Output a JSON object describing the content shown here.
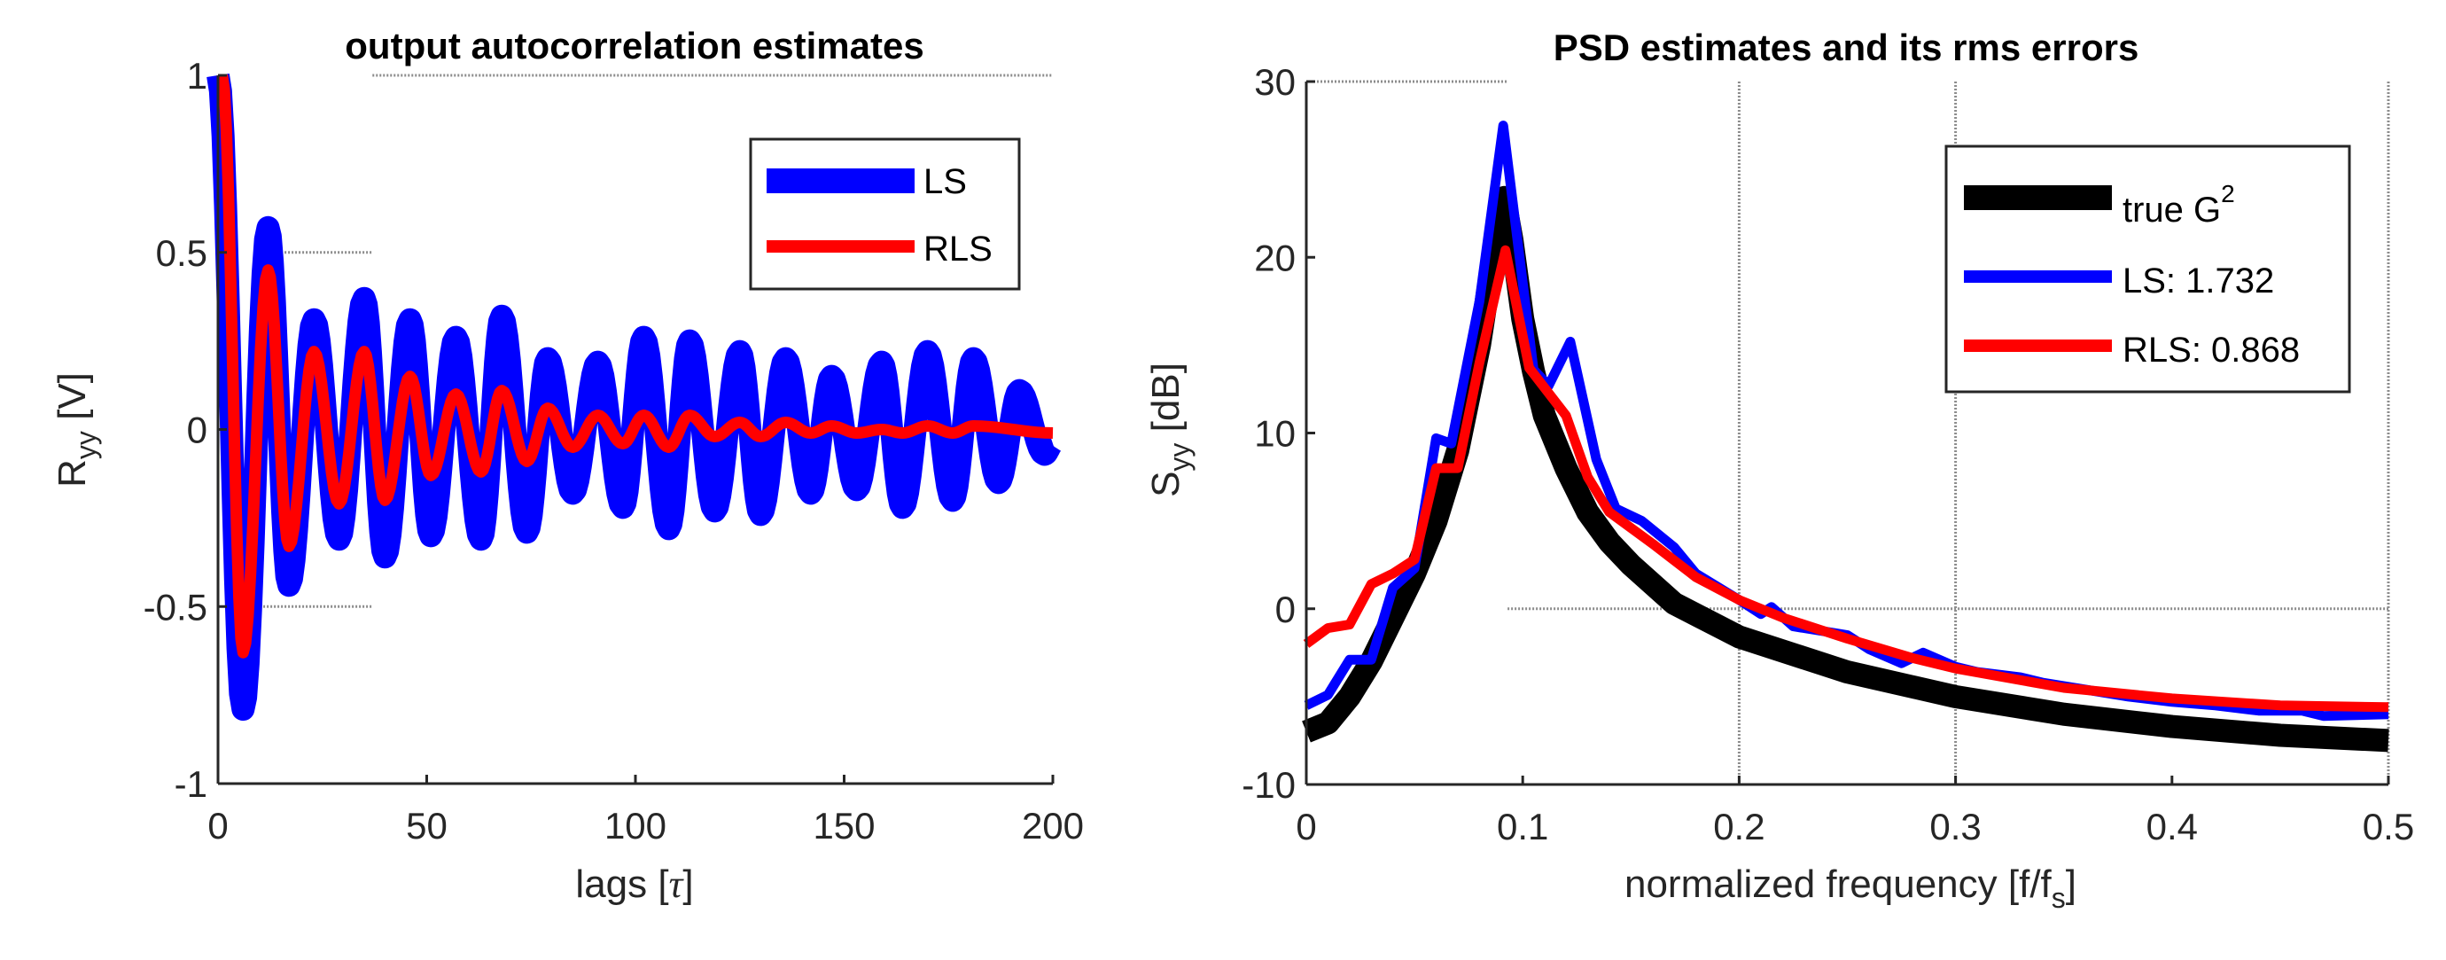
{
  "chart_data": [
    {
      "type": "line",
      "title": "output autocorrelation estimates",
      "xlabel_main": "lags [",
      "xlabel_sym": "τ",
      "xlabel_end": "]",
      "ylabel_main": "R",
      "ylabel_sub": "yy",
      "ylabel_end": " [V]",
      "xlim": [
        0,
        200
      ],
      "ylim": [
        -1,
        1
      ],
      "xticks": [
        0,
        50,
        100,
        150,
        200
      ],
      "yticks": [
        -1,
        -0.5,
        0,
        0.5,
        1
      ],
      "xtick_labels": [
        "0",
        "50",
        "100",
        "150",
        "200"
      ],
      "ytick_labels": [
        "-1",
        "-0.5",
        "0",
        "0.5",
        "1"
      ],
      "legend_position": "top-right",
      "series": [
        {
          "name": "LS",
          "color": "#0000ff",
          "note": "extrema points, cosine-interpolated",
          "x": [
            0,
            6,
            12,
            17,
            23,
            29,
            35,
            40,
            46,
            51,
            57,
            63,
            68,
            74,
            79,
            85,
            91,
            97,
            102,
            108,
            113,
            119,
            125,
            130,
            136,
            142,
            147,
            153,
            159,
            164,
            170,
            176,
            181,
            187,
            192,
            198,
            200
          ],
          "y": [
            1,
            -0.79,
            0.57,
            -0.44,
            0.31,
            -0.31,
            0.37,
            -0.36,
            0.31,
            -0.3,
            0.26,
            -0.31,
            0.32,
            -0.29,
            0.2,
            -0.18,
            0.19,
            -0.22,
            0.26,
            -0.28,
            0.25,
            -0.23,
            0.22,
            -0.24,
            0.2,
            -0.18,
            0.15,
            -0.17,
            0.19,
            -0.22,
            0.22,
            -0.2,
            0.2,
            -0.15,
            0.11,
            -0.07,
            -0.04
          ]
        },
        {
          "name": "RLS",
          "color": "#ff0000",
          "x": [
            1,
            6,
            12,
            17,
            23,
            29,
            35,
            40,
            46,
            51,
            57,
            63,
            68,
            74,
            79,
            85,
            91,
            97,
            102,
            108,
            113,
            119,
            125,
            130,
            136,
            142,
            147,
            153,
            159,
            164,
            170,
            176,
            181,
            200
          ],
          "y": [
            1,
            -0.63,
            0.45,
            -0.33,
            0.22,
            -0.21,
            0.22,
            -0.2,
            0.15,
            -0.13,
            0.1,
            -0.12,
            0.11,
            -0.09,
            0.06,
            -0.05,
            0.04,
            -0.04,
            0.04,
            -0.05,
            0.04,
            -0.02,
            0.02,
            -0.02,
            0.02,
            -0.01,
            0.01,
            -0.01,
            0.0,
            -0.01,
            0.01,
            -0.01,
            0.01,
            -0.01
          ]
        }
      ]
    },
    {
      "type": "line",
      "title": "PSD estimates and its rms errors",
      "xlabel_main": "normalized frequency [f/f",
      "xlabel_sub": "s",
      "xlabel_end": "]",
      "ylabel_main": "S",
      "ylabel_sub": "yy",
      "ylabel_end": " [dB]",
      "xlim": [
        0,
        0.5
      ],
      "ylim": [
        -10,
        30
      ],
      "xticks": [
        0,
        0.1,
        0.2,
        0.3,
        0.4,
        0.5
      ],
      "yticks": [
        -10,
        0,
        10,
        20,
        30
      ],
      "xtick_labels": [
        "0",
        "0.1",
        "0.2",
        "0.3",
        "0.4",
        "0.5"
      ],
      "ytick_labels": [
        "-10",
        "0",
        "10",
        "20",
        "30"
      ],
      "legend_position": "top-right",
      "series": [
        {
          "name": "true G",
          "name_sup": "2",
          "color": "#000000",
          "x": [
            0,
            0.01,
            0.02,
            0.03,
            0.04,
            0.05,
            0.06,
            0.07,
            0.08,
            0.085,
            0.0915,
            0.095,
            0.1,
            0.105,
            0.11,
            0.12,
            0.13,
            0.14,
            0.15,
            0.17,
            0.2,
            0.25,
            0.3,
            0.35,
            0.4,
            0.45,
            0.5
          ],
          "y": [
            -7,
            -6.5,
            -5,
            -3,
            -0.5,
            2,
            5,
            9,
            15,
            19,
            23.4,
            21,
            16.5,
            13.5,
            11,
            8,
            5.5,
            3.8,
            2.5,
            0.3,
            -1.6,
            -3.6,
            -5,
            -6,
            -6.7,
            -7.2,
            -7.5
          ]
        },
        {
          "name": "LS: 1.732",
          "color": "#0000ff",
          "x": [
            0,
            0.01,
            0.02,
            0.03,
            0.04,
            0.05,
            0.06,
            0.067,
            0.08,
            0.091,
            0.105,
            0.112,
            0.122,
            0.134,
            0.143,
            0.155,
            0.17,
            0.18,
            0.2,
            0.21,
            0.215,
            0.225,
            0.24,
            0.25,
            0.26,
            0.275,
            0.285,
            0.3,
            0.31,
            0.33,
            0.34,
            0.36,
            0.38,
            0.4,
            0.42,
            0.44,
            0.46,
            0.47,
            0.5
          ],
          "y": [
            -5.5,
            -4.9,
            -2.9,
            -2.9,
            1.2,
            2.3,
            9.7,
            9.4,
            17.5,
            27.5,
            13.6,
            12.7,
            15.2,
            8.5,
            5.7,
            5,
            3.5,
            2,
            0.5,
            -0.3,
            0.1,
            -1,
            -1.3,
            -1.5,
            -2.3,
            -3.1,
            -2.5,
            -3.3,
            -3.6,
            -3.9,
            -4.2,
            -4.6,
            -5,
            -5.3,
            -5.5,
            -5.8,
            -5.8,
            -6.1,
            -6
          ]
        },
        {
          "name": "RLS: 0.868",
          "color": "#ff0000",
          "x": [
            0,
            0.01,
            0.02,
            0.03,
            0.04,
            0.05,
            0.06,
            0.07,
            0.08,
            0.092,
            0.103,
            0.12,
            0.13,
            0.14,
            0.16,
            0.18,
            0.2,
            0.22,
            0.25,
            0.28,
            0.3,
            0.35,
            0.4,
            0.45,
            0.5
          ],
          "y": [
            -2,
            -1.1,
            -0.9,
            1.4,
            2,
            2.8,
            8,
            8,
            14,
            20.4,
            13.7,
            11,
            7.5,
            5.5,
            3.7,
            1.8,
            0.5,
            -0.5,
            -1.7,
            -2.8,
            -3.4,
            -4.5,
            -5.1,
            -5.5,
            -5.6
          ]
        }
      ]
    }
  ]
}
